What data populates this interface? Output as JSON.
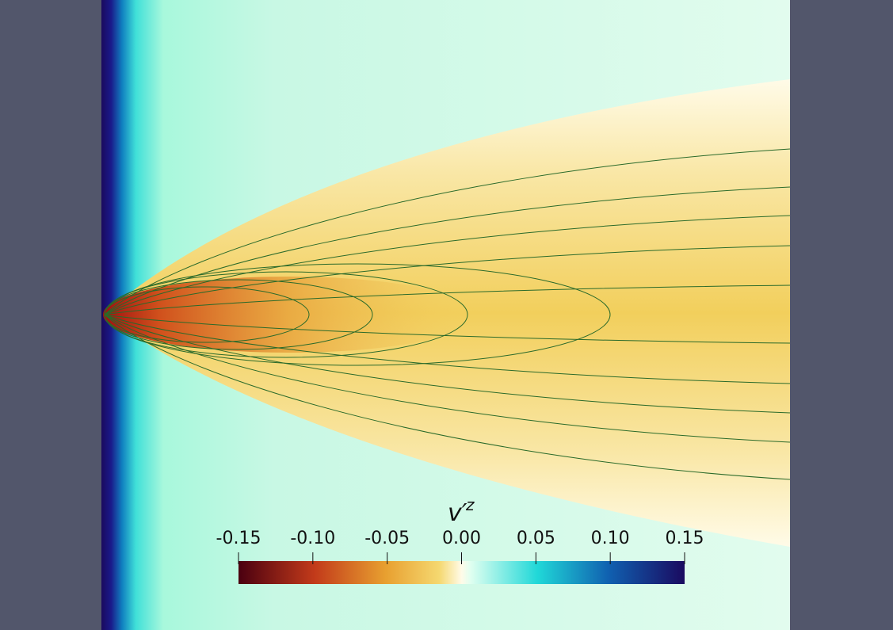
{
  "chart_data": {
    "type": "colorbar",
    "title": "v′",
    "title_superscript": "z",
    "lim": [
      -0.15,
      0.15
    ],
    "ticks": [
      {
        "value": -0.15,
        "label": "-0.15"
      },
      {
        "value": -0.1,
        "label": "-0.10"
      },
      {
        "value": -0.05,
        "label": "-0.05"
      },
      {
        "value": 0,
        "label": "0.00"
      },
      {
        "value": 0.05,
        "label": "0.05"
      },
      {
        "value": 0.1,
        "label": "0.10"
      },
      {
        "value": 0.15,
        "label": "0.15"
      }
    ]
  }
}
